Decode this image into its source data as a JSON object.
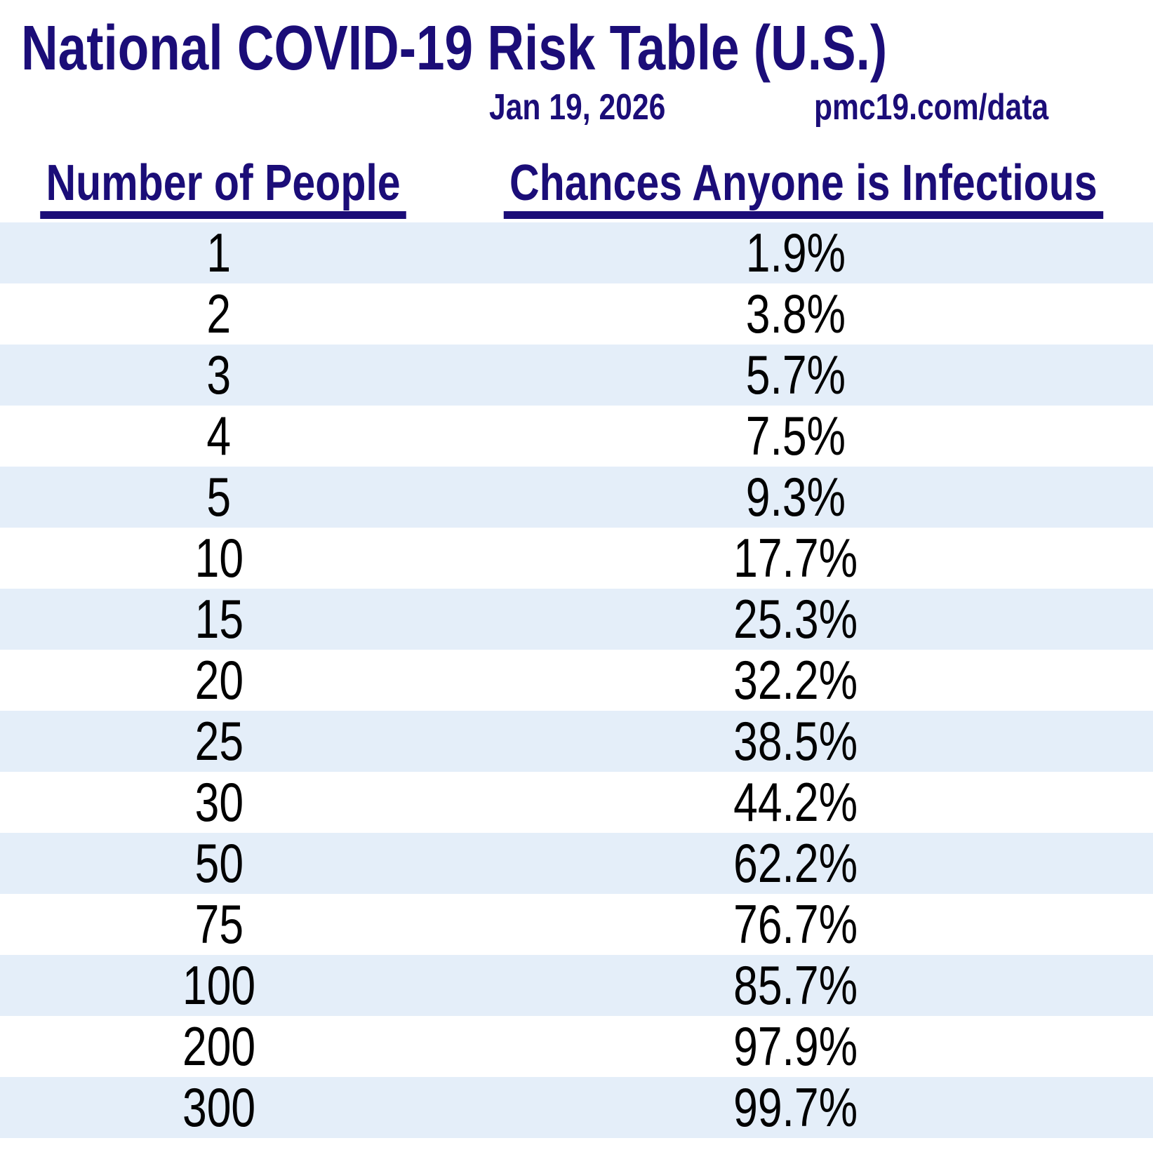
{
  "page": {
    "title": "National COVID-19 Risk Table (U.S.)",
    "date": "Jan 19, 2026",
    "source_url": "pmc19.com/data"
  },
  "table": {
    "columns": [
      "Number of People",
      "Chances Anyone is Infectious"
    ],
    "rows": [
      {
        "people": "1",
        "chance": "1.9%"
      },
      {
        "people": "2",
        "chance": "3.8%"
      },
      {
        "people": "3",
        "chance": "5.7%"
      },
      {
        "people": "4",
        "chance": "7.5%"
      },
      {
        "people": "5",
        "chance": "9.3%"
      },
      {
        "people": "10",
        "chance": "17.7%"
      },
      {
        "people": "15",
        "chance": "25.3%"
      },
      {
        "people": "20",
        "chance": "32.2%"
      },
      {
        "people": "25",
        "chance": "38.5%"
      },
      {
        "people": "30",
        "chance": "44.2%"
      },
      {
        "people": "50",
        "chance": "62.2%"
      },
      {
        "people": "75",
        "chance": "76.7%"
      },
      {
        "people": "100",
        "chance": "85.7%"
      },
      {
        "people": "200",
        "chance": "97.9%"
      },
      {
        "people": "300",
        "chance": "99.7%"
      }
    ]
  },
  "colors": {
    "heading_navy": "#1b0d78",
    "row_alternate_blue": "#e4eef9",
    "row_default": "#ffffff",
    "data_text": "#000000"
  },
  "chart_data": {
    "type": "table",
    "title": "National COVID-19 Risk Table (U.S.)",
    "subtitle": "Jan 19, 2026",
    "source": "pmc19.com/data",
    "columns": [
      "Number of People",
      "Chances Anyone is Infectious"
    ],
    "number_of_people": [
      1,
      2,
      3,
      4,
      5,
      10,
      15,
      20,
      25,
      30,
      50,
      75,
      100,
      200,
      300
    ],
    "chance_anyone_infectious_percent": [
      1.9,
      3.8,
      5.7,
      7.5,
      9.3,
      17.7,
      25.3,
      32.2,
      38.5,
      44.2,
      62.2,
      76.7,
      85.7,
      97.9,
      99.7
    ],
    "layout": "two-column centered table, alternating row shading (light blue / white), header underlined"
  }
}
